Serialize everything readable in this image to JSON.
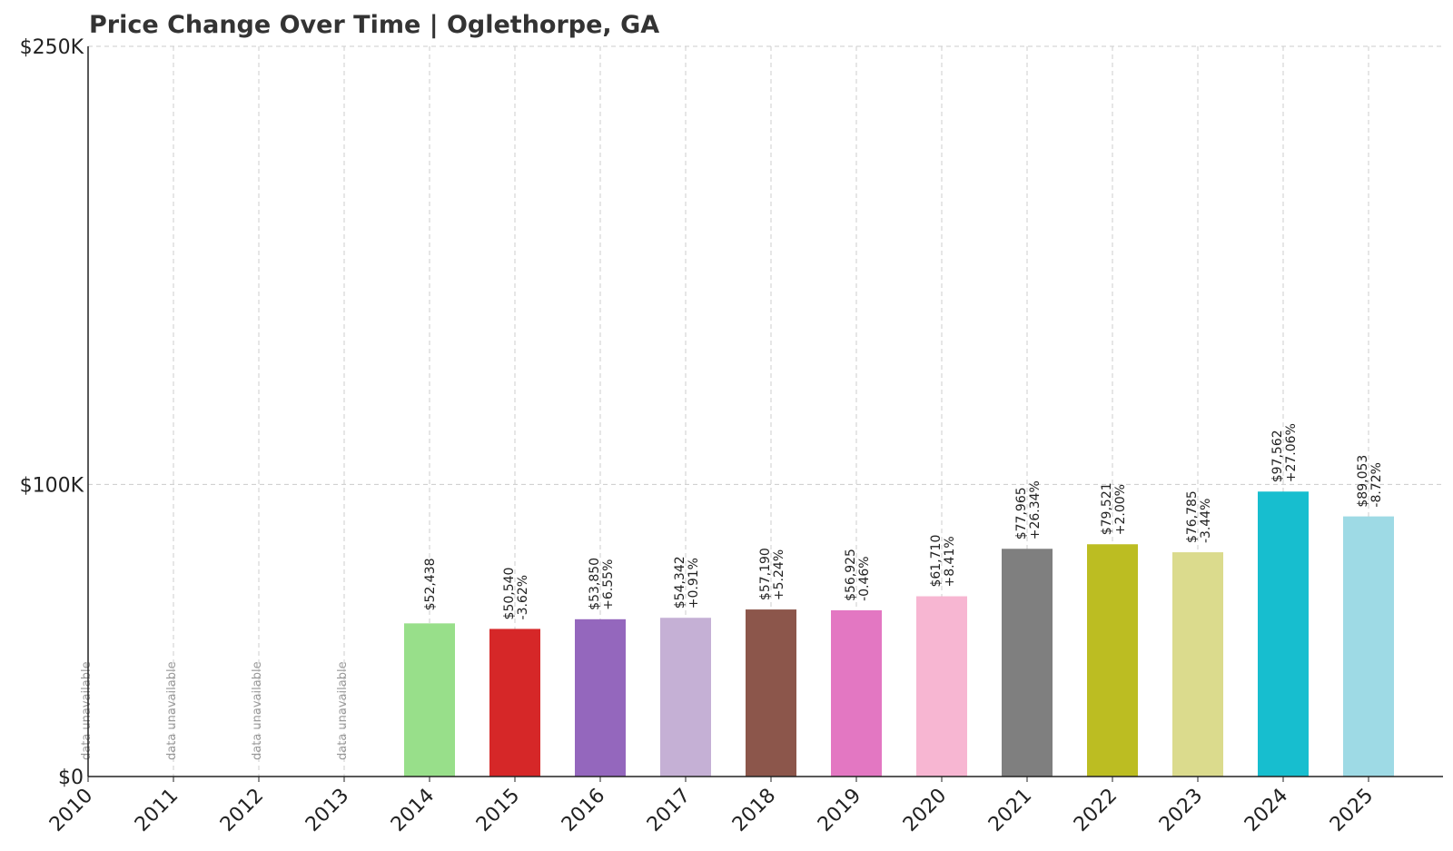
{
  "chart_data": {
    "type": "bar",
    "title": "Price Change Over Time | Oglethorpe, GA",
    "xlabel": "",
    "ylabel": "",
    "categories": [
      "2010",
      "2011",
      "2012",
      "2013",
      "2014",
      "2015",
      "2016",
      "2017",
      "2018",
      "2019",
      "2020",
      "2021",
      "2022",
      "2023",
      "2024",
      "2025"
    ],
    "values": [
      null,
      null,
      null,
      null,
      52438,
      50540,
      53850,
      54342,
      57190,
      56925,
      61710,
      77965,
      79521,
      76785,
      97562,
      89053
    ],
    "value_labels": [
      null,
      null,
      null,
      null,
      "$52,438",
      "$50,540",
      "$53,850",
      "$54,342",
      "$57,190",
      "$56,925",
      "$61,710",
      "$77,965",
      "$79,521",
      "$76,785",
      "$97,562",
      "$89,053"
    ],
    "change_labels": [
      null,
      null,
      null,
      null,
      null,
      "-3.62%",
      "+6.55%",
      "+0.91%",
      "+5.24%",
      "-0.46%",
      "+8.41%",
      "+26.34%",
      "+2.00%",
      "-3.44%",
      "+27.06%",
      "-8.72%"
    ],
    "unavailable_label": "data unavailable",
    "colors": [
      "#1f77b4",
      "#aec7e8",
      "#ff7f0e",
      "#ffbb78",
      "#98df8a",
      "#d62728",
      "#9467bd",
      "#c5b0d5",
      "#8c564b",
      "#e377c2",
      "#f7b6d2",
      "#7f7f7f",
      "#bcbd22",
      "#dbdb8d",
      "#17becf",
      "#9edae5"
    ],
    "ylim": [
      0,
      250000
    ],
    "yticks": [
      {
        "value": 0,
        "label": "$0"
      },
      {
        "value": 100000,
        "label": "$100K"
      },
      {
        "value": 250000,
        "label": "$250K"
      }
    ],
    "grid": true,
    "legend": "none"
  }
}
